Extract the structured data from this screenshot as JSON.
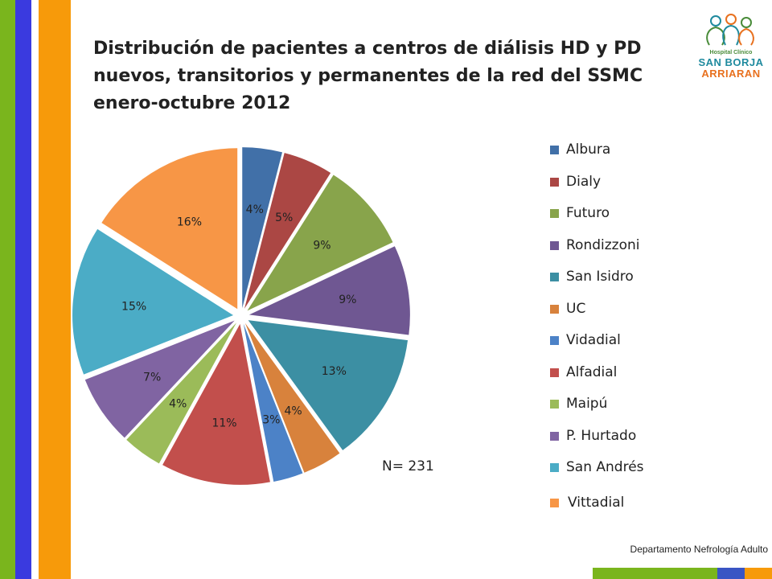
{
  "title_lines": [
    "Distribución de pacientes a centros de diálisis HD y PD",
    "nuevos, transitorios y permanentes de la red del SSMC",
    "enero-octubre 2012"
  ],
  "logo": {
    "line1": "Hospital Clínico",
    "line2": "SAN BORJA",
    "line3": "ARRIARAN"
  },
  "note": "N= 231",
  "footer": "Departamento Nefrología Adulto",
  "chart_data": {
    "type": "pie",
    "title": "Distribución de pacientes a centros de diálisis HD y PD nuevos, transitorios y permanentes de la red del SSMC enero-octubre 2012",
    "categories": [
      "Albura",
      "Dialy",
      "Futuro",
      "Rondizzoni",
      "San Isidro",
      "UC",
      "Vidadial",
      "Alfadial",
      "Maipú",
      "P. Hurtado",
      "San Andrés",
      "Vittadial"
    ],
    "values": [
      4,
      5,
      9,
      9,
      13,
      4,
      3,
      11,
      4,
      7,
      15,
      16
    ],
    "labels": [
      "4%",
      "5%",
      "9%",
      "9%",
      "13%",
      "4%",
      "3%",
      "11%",
      "4%",
      "7%",
      "15%",
      "16%"
    ],
    "colors": [
      "#4170a8",
      "#ab4744",
      "#88a44b",
      "#6f5792",
      "#3c8fa3",
      "#d8823c",
      "#4c82c7",
      "#c24f4c",
      "#9bbb59",
      "#8064a2",
      "#4bacc6",
      "#f79646"
    ],
    "legend_position": "right",
    "exploded": true
  }
}
